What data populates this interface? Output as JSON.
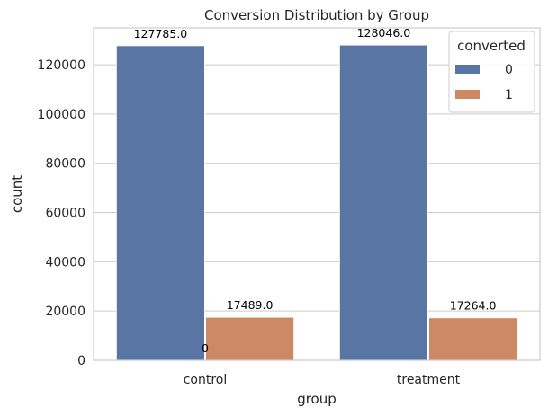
{
  "chart_data": {
    "type": "bar",
    "title": "Conversion Distribution by Group",
    "xlabel": "group",
    "ylabel": "count",
    "categories": [
      "control",
      "treatment"
    ],
    "ylim": [
      0,
      135000
    ],
    "yticks": [
      0,
      20000,
      40000,
      60000,
      80000,
      100000,
      120000
    ],
    "grid": true,
    "legend": {
      "title": "converted",
      "placement": "top-right"
    },
    "series": [
      {
        "name": "0",
        "color": "#5875a4",
        "values": [
          127785,
          128046
        ],
        "labels": [
          "127785.0",
          "128046.0"
        ]
      },
      {
        "name": "1",
        "color": "#cc8963",
        "values": [
          17489,
          17264
        ],
        "labels": [
          "17489.0",
          "17264.0"
        ]
      }
    ],
    "annotations": [
      {
        "text": "0",
        "category": "control",
        "y": 0
      }
    ]
  }
}
